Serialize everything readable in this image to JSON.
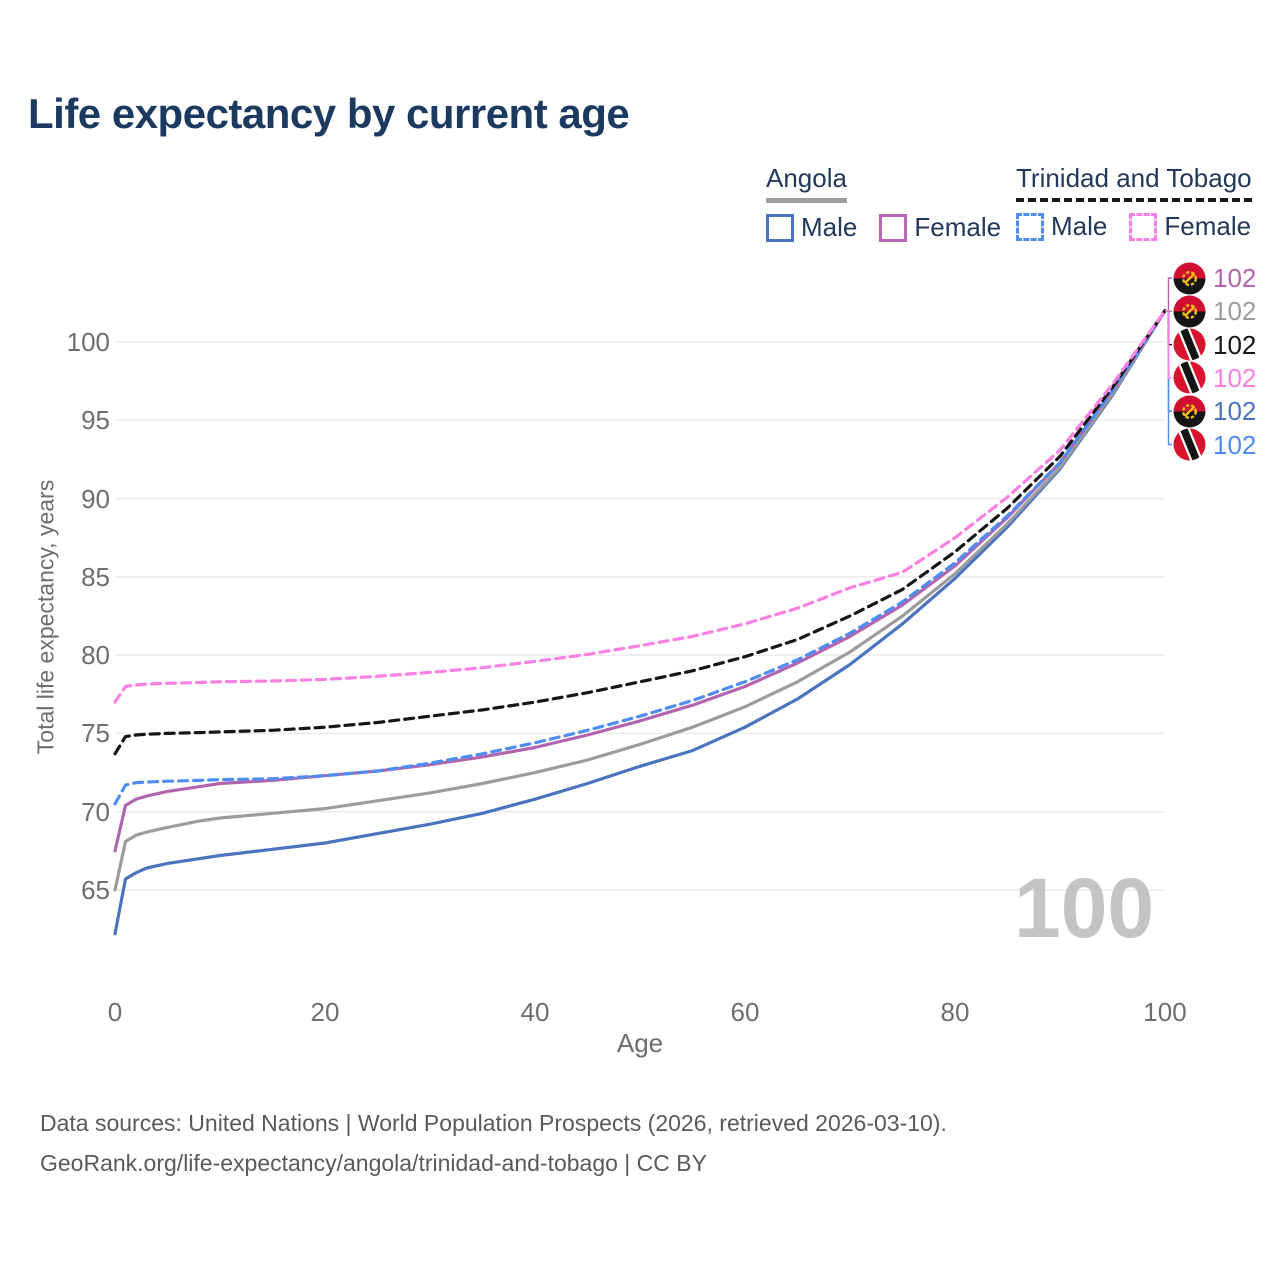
{
  "title": "Life expectancy by current age",
  "legend": {
    "groups": [
      {
        "country": "Angola",
        "underline": {
          "style": "solid",
          "color": "#9e9e9e"
        },
        "items": [
          {
            "label": "Male",
            "color": "#4a73c0",
            "dashed": false
          },
          {
            "label": "Female",
            "color": "#b869b4",
            "dashed": false
          }
        ]
      },
      {
        "country": "Trinidad and Tobago",
        "underline": {
          "style": "dashed",
          "color": "#1a1a1a"
        },
        "items": [
          {
            "label": "Male",
            "color": "#4f8df2",
            "dashed": true
          },
          {
            "label": "Female",
            "color": "#fb80e3",
            "dashed": true
          }
        ]
      }
    ]
  },
  "watermark": "100",
  "footer": {
    "line1": "Data sources: United Nations | World Population Prospects (2026, retrieved 2026-03-10).",
    "line2": "GeoRank.org/life-expectancy/angola/trinidad-and-tobago | CC BY"
  },
  "chart_data": {
    "type": "line",
    "title": "Life expectancy by current age",
    "xlabel": "Age",
    "ylabel": "Total life expectancy, years",
    "x_ticks": [
      0,
      20,
      40,
      60,
      80,
      100
    ],
    "y_ticks": [
      65,
      70,
      75,
      80,
      85,
      90,
      95,
      100
    ],
    "xlim": [
      0,
      100
    ],
    "ylim": [
      62,
      102
    ],
    "grid": "horizontal",
    "legend_position": "top-right",
    "x": [
      0,
      1,
      2,
      3,
      5,
      8,
      10,
      15,
      20,
      25,
      30,
      35,
      40,
      45,
      50,
      55,
      60,
      65,
      70,
      75,
      80,
      85,
      90,
      95,
      100
    ],
    "series": [
      {
        "id": "angola-male",
        "country": "Angola",
        "color": "#4a73c0",
        "dash": "solid",
        "flag": "angola",
        "end_label": "102",
        "label_row": 4,
        "values": [
          62.2,
          65.7,
          66.1,
          66.4,
          66.7,
          67.0,
          67.2,
          67.6,
          68.0,
          68.6,
          69.2,
          69.9,
          70.8,
          71.8,
          72.9,
          73.9,
          75.4,
          77.2,
          79.4,
          82.0,
          84.9,
          88.2,
          91.9,
          96.6,
          102
        ]
      },
      {
        "id": "angola-total",
        "country": "Angola",
        "color": "#9c9c9c",
        "dash": "solid",
        "flag": "angola",
        "end_label": "102",
        "label_row": 1,
        "values": [
          65.0,
          68.1,
          68.5,
          68.7,
          69.0,
          69.4,
          69.6,
          69.9,
          70.2,
          70.7,
          71.2,
          71.8,
          72.5,
          73.3,
          74.3,
          75.4,
          76.7,
          78.3,
          80.2,
          82.5,
          85.2,
          88.4,
          92.0,
          96.7,
          102
        ]
      },
      {
        "id": "angola-female",
        "country": "Angola",
        "color": "#b265ae",
        "dash": "solid",
        "flag": "angola",
        "end_label": "102",
        "label_row": 0,
        "values": [
          67.5,
          70.4,
          70.8,
          71.0,
          71.3,
          71.6,
          71.8,
          72.0,
          72.3,
          72.6,
          73.0,
          73.5,
          74.1,
          74.9,
          75.8,
          76.8,
          78.0,
          79.5,
          81.2,
          83.2,
          85.7,
          88.8,
          92.3,
          96.9,
          102
        ]
      },
      {
        "id": "tt-male",
        "country": "Trinidad and Tobago",
        "color": "#4f8df2",
        "dash": "dashed",
        "flag": "tt",
        "end_label": "102",
        "label_row": 5,
        "values": [
          70.5,
          71.7,
          71.85,
          71.9,
          71.95,
          72.0,
          72.05,
          72.1,
          72.3,
          72.6,
          73.1,
          73.7,
          74.4,
          75.2,
          76.1,
          77.1,
          78.3,
          79.7,
          81.4,
          83.4,
          85.9,
          88.9,
          92.3,
          96.9,
          102
        ]
      },
      {
        "id": "tt-total",
        "country": "Trinidad and Tobago",
        "color": "#161616",
        "dash": "dashed",
        "flag": "tt",
        "end_label": "102",
        "label_row": 2,
        "values": [
          73.7,
          74.8,
          74.9,
          74.95,
          75.0,
          75.05,
          75.1,
          75.2,
          75.4,
          75.7,
          76.1,
          76.5,
          77.0,
          77.6,
          78.3,
          79.0,
          79.9,
          81.0,
          82.5,
          84.2,
          86.6,
          89.4,
          92.7,
          97.1,
          102
        ]
      },
      {
        "id": "tt-female",
        "country": "Trinidad and Tobago",
        "color": "#fb80e3",
        "dash": "dashed",
        "flag": "tt",
        "end_label": "102",
        "label_row": 3,
        "values": [
          77.0,
          78.0,
          78.1,
          78.15,
          78.2,
          78.25,
          78.3,
          78.35,
          78.45,
          78.65,
          78.9,
          79.2,
          79.6,
          80.05,
          80.6,
          81.2,
          82.0,
          83.0,
          84.3,
          85.3,
          87.5,
          90.1,
          93.1,
          97.3,
          102
        ]
      }
    ]
  }
}
